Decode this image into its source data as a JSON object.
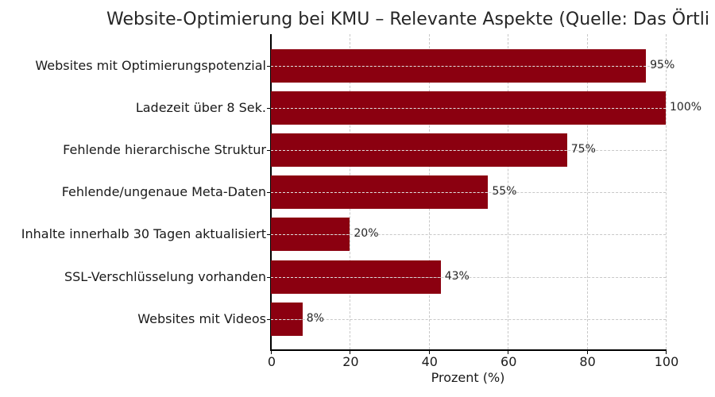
{
  "chart_data": {
    "type": "bar",
    "orientation": "horizontal",
    "title": "Website-Optimierung bei KMU – Relevante Aspekte (Quelle: Das Örtli",
    "xlabel": "Prozent (%)",
    "ylabel": "",
    "xlim": [
      0,
      100
    ],
    "xticks": [
      "0",
      "20",
      "40",
      "60",
      "80",
      "100"
    ],
    "grid": true,
    "bar_color": "#8b0010",
    "categories": [
      "Websites mit Optimierungspotenzial",
      "Ladezeit über 8 Sek.",
      "Fehlende hierarchische Struktur",
      "Fehlende/ungenaue Meta-Daten",
      "Inhalte innerhalb 30 Tagen aktualisiert",
      "SSL-Verschlüsselung vorhanden",
      "Websites mit Videos"
    ],
    "values": [
      95,
      100,
      75,
      55,
      20,
      43,
      8
    ],
    "value_labels": [
      "95%",
      "100%",
      "75%",
      "55%",
      "20%",
      "43%",
      "8%"
    ]
  }
}
